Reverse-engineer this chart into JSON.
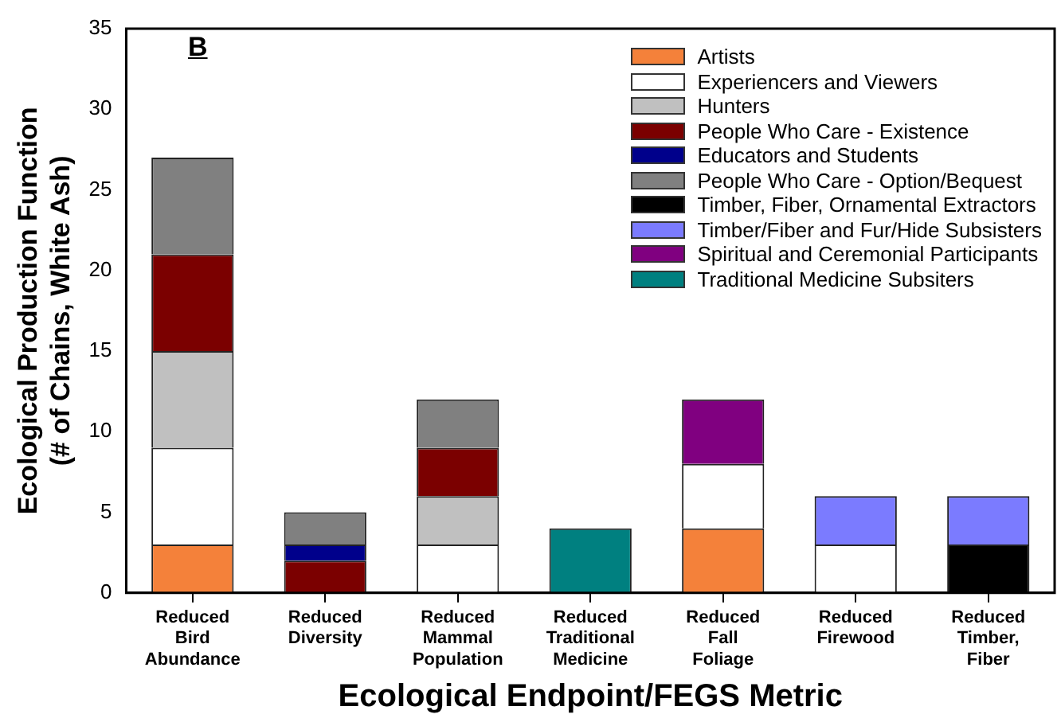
{
  "chart_data": {
    "type": "bar",
    "stacked": true,
    "xlabel": "Ecological Endpoint/FEGS Metric",
    "ylabel": "Ecological Production Function (# of Chains, White Ash)",
    "annotations": [
      "B"
    ],
    "categories": [
      "Reduced Bird Abundance",
      "Reduced Diversity",
      "Reduced Mammal Population",
      "Reduced Traditional Medicine",
      "Reduced Fall Foliage",
      "Reduced Firewood",
      "Reduced Timber, Fiber"
    ],
    "ylim": [
      0,
      35
    ],
    "yticks": [
      0,
      5,
      10,
      15,
      20,
      25,
      30,
      35
    ],
    "grid": false,
    "legend": "top right",
    "series": [
      {
        "name": "Artists",
        "color": "#f4813a",
        "values": [
          3,
          null,
          null,
          null,
          4,
          null,
          null
        ]
      },
      {
        "name": "Experiencers and Viewers",
        "color": "#ffffff",
        "values": [
          6,
          null,
          3,
          null,
          4,
          3,
          null
        ]
      },
      {
        "name": "Hunters",
        "color": "#c0c0c0",
        "values": [
          6,
          null,
          3,
          null,
          null,
          null,
          null
        ]
      },
      {
        "name": "People Who Care - Existence",
        "color": "#7b0000",
        "values": [
          6,
          2,
          3,
          null,
          null,
          null,
          null
        ]
      },
      {
        "name": "Educators and Students",
        "color": "#00008b",
        "values": [
          null,
          1,
          null,
          null,
          null,
          null,
          null
        ]
      },
      {
        "name": "People Who Care - Option/Bequest",
        "color": "#808080",
        "values": [
          6,
          2,
          3,
          null,
          null,
          null,
          null
        ]
      },
      {
        "name": "Timber, Fiber, Ornamental Extractors",
        "color": "#000000",
        "values": [
          null,
          null,
          null,
          null,
          null,
          null,
          3
        ]
      },
      {
        "name": "Timber/Fiber and Fur/Hide Subsisters",
        "color": "#7b7bff",
        "values": [
          null,
          null,
          null,
          null,
          null,
          3,
          3
        ]
      },
      {
        "name": "Spiritual and Ceremonial Participants",
        "color": "#800080",
        "values": [
          null,
          null,
          null,
          null,
          4,
          null,
          null
        ]
      },
      {
        "name": "Traditional Medicine Subsiters",
        "color": "#008080",
        "values": [
          null,
          null,
          null,
          4,
          null,
          null,
          null
        ]
      }
    ]
  }
}
